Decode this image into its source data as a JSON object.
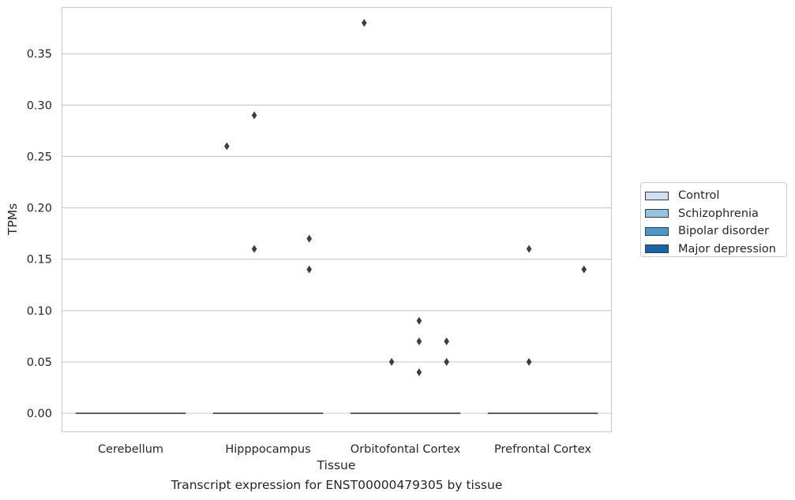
{
  "chart_data": {
    "type": "box",
    "xlabel": "Tissue",
    "ylabel": "TPMs",
    "categories": [
      "Cerebellum",
      "Hipppocampus",
      "Orbitofontal Cortex",
      "Prefrontal Cortex"
    ],
    "ylim": [
      -0.018,
      0.395
    ],
    "yticks": [
      "0.00",
      "0.05",
      "0.10",
      "0.15",
      "0.20",
      "0.25",
      "0.30",
      "0.35"
    ],
    "grid": "horizontal",
    "legend_position": "right",
    "series": [
      {
        "name": "Control",
        "color": "#d0e1f2",
        "medians": [
          0,
          0,
          0,
          0
        ],
        "outliers": [
          [],
          [
            0.26
          ],
          [
            0.38
          ],
          []
        ]
      },
      {
        "name": "Schizophrenia",
        "color": "#94c4df",
        "medians": [
          0,
          0,
          0,
          0
        ],
        "outliers": [
          [],
          [
            0.29,
            0.16
          ],
          [
            0.05
          ],
          [
            0.16,
            0.05
          ]
        ]
      },
      {
        "name": "Bipolar disorder",
        "color": "#4a98c9",
        "medians": [
          0,
          0,
          0,
          0
        ],
        "outliers": [
          [],
          [],
          [
            0.09,
            0.07,
            0.04
          ],
          []
        ]
      },
      {
        "name": "Major depression",
        "color": "#1764ab",
        "medians": [
          0,
          0,
          0,
          0
        ],
        "outliers": [
          [],
          [
            0.17,
            0.14
          ],
          [
            0.07,
            0.05
          ],
          [
            0.14
          ]
        ]
      }
    ]
  },
  "caption": "Transcript expression for ENST00000479305 by tissue"
}
